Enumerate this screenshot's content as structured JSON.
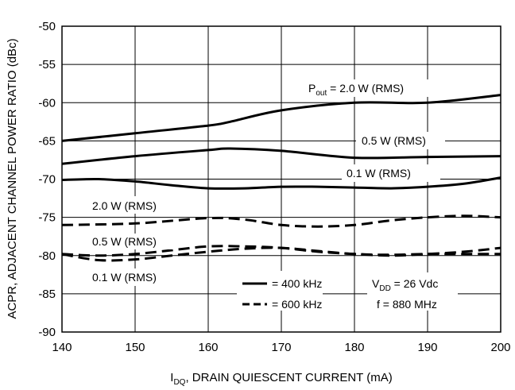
{
  "chart_data": {
    "type": "line",
    "title": "",
    "xlabel_main": "I",
    "xlabel_sub": "DQ",
    "xlabel_rest": ", DRAIN QUIESCENT CURRENT (mA)",
    "ylabel": "ACPR, ADJACENT CHANNEL POWER RATIO (dBc)",
    "xlim": [
      140,
      200
    ],
    "ylim": [
      -90,
      -50
    ],
    "x_ticks": [
      140,
      150,
      160,
      170,
      180,
      190,
      200
    ],
    "y_ticks": [
      -50,
      -55,
      -60,
      -65,
      -70,
      -75,
      -80,
      -85,
      -90
    ],
    "grid": true,
    "series": [
      {
        "group": "400 kHz",
        "style": "solid",
        "label": "2.0 W (RMS)",
        "x": [
          140,
          150,
          160,
          163,
          170,
          180,
          190,
          200
        ],
        "y": [
          -65,
          -64,
          -63,
          -62.5,
          -61,
          -60,
          -60,
          -59
        ]
      },
      {
        "group": "400 kHz",
        "style": "solid",
        "label": "0.5 W (RMS)",
        "x": [
          140,
          150,
          160,
          163,
          170,
          180,
          190,
          200
        ],
        "y": [
          -68,
          -67,
          -66.2,
          -66,
          -66.3,
          -67.2,
          -67.1,
          -67
        ]
      },
      {
        "group": "400 kHz",
        "style": "solid",
        "label": "0.1 W (RMS)",
        "x": [
          140,
          145,
          150,
          155,
          160,
          165,
          170,
          175,
          180,
          185,
          190,
          195,
          200
        ],
        "y": [
          -70.1,
          -70,
          -70.3,
          -70.8,
          -71.2,
          -71.2,
          -71,
          -71,
          -71.1,
          -71.2,
          -71,
          -70.6,
          -69.8
        ]
      },
      {
        "group": "600 kHz",
        "style": "dashed",
        "label": "2.0 W (RMS)",
        "x": [
          140,
          150,
          160,
          165,
          170,
          175,
          180,
          185,
          190,
          195,
          200
        ],
        "y": [
          -76,
          -75.8,
          -75.1,
          -75.3,
          -76,
          -76.2,
          -76,
          -75.4,
          -75,
          -74.8,
          -75
        ]
      },
      {
        "group": "600 kHz",
        "style": "dashed",
        "label": "0.5 W (RMS)",
        "x": [
          140,
          145,
          150,
          155,
          160,
          165,
          170,
          175,
          180,
          185,
          190,
          195,
          200
        ],
        "y": [
          -79.8,
          -80,
          -79.8,
          -79.3,
          -78.8,
          -78.8,
          -79,
          -79.5,
          -79.8,
          -80,
          -79.8,
          -79.5,
          -79
        ]
      },
      {
        "group": "600 kHz",
        "style": "dashed",
        "label": "0.1 W (RMS)",
        "x": [
          140,
          145,
          150,
          155,
          160,
          165,
          170,
          175,
          180,
          185,
          190,
          195,
          200
        ],
        "y": [
          -79.8,
          -80.6,
          -80.5,
          -80,
          -79.5,
          -79.1,
          -79,
          -79.4,
          -79.8,
          -79.9,
          -79.8,
          -79.8,
          -79.8
        ]
      }
    ],
    "legend": {
      "placement": "bottom-center",
      "entries": [
        {
          "style": "solid",
          "label": "= 400 kHz"
        },
        {
          "style": "dashed",
          "label": "= 600 kHz"
        }
      ]
    },
    "conditions": {
      "vdd_main": "V",
      "vdd_sub": "DD",
      "vdd_rest": " = 26 Vdc",
      "freq": "f = 880 MHz"
    },
    "annotations": {
      "pout_main": "P",
      "pout_sub": "out",
      "pout_rest": " = 2.0 W (RMS)",
      "solid_05": "0.5 W (RMS)",
      "solid_01": "0.1 W (RMS)",
      "dashed_20": "2.0 W (RMS)",
      "dashed_05": "0.5 W (RMS)",
      "dashed_01": "0.1 W (RMS)"
    }
  }
}
